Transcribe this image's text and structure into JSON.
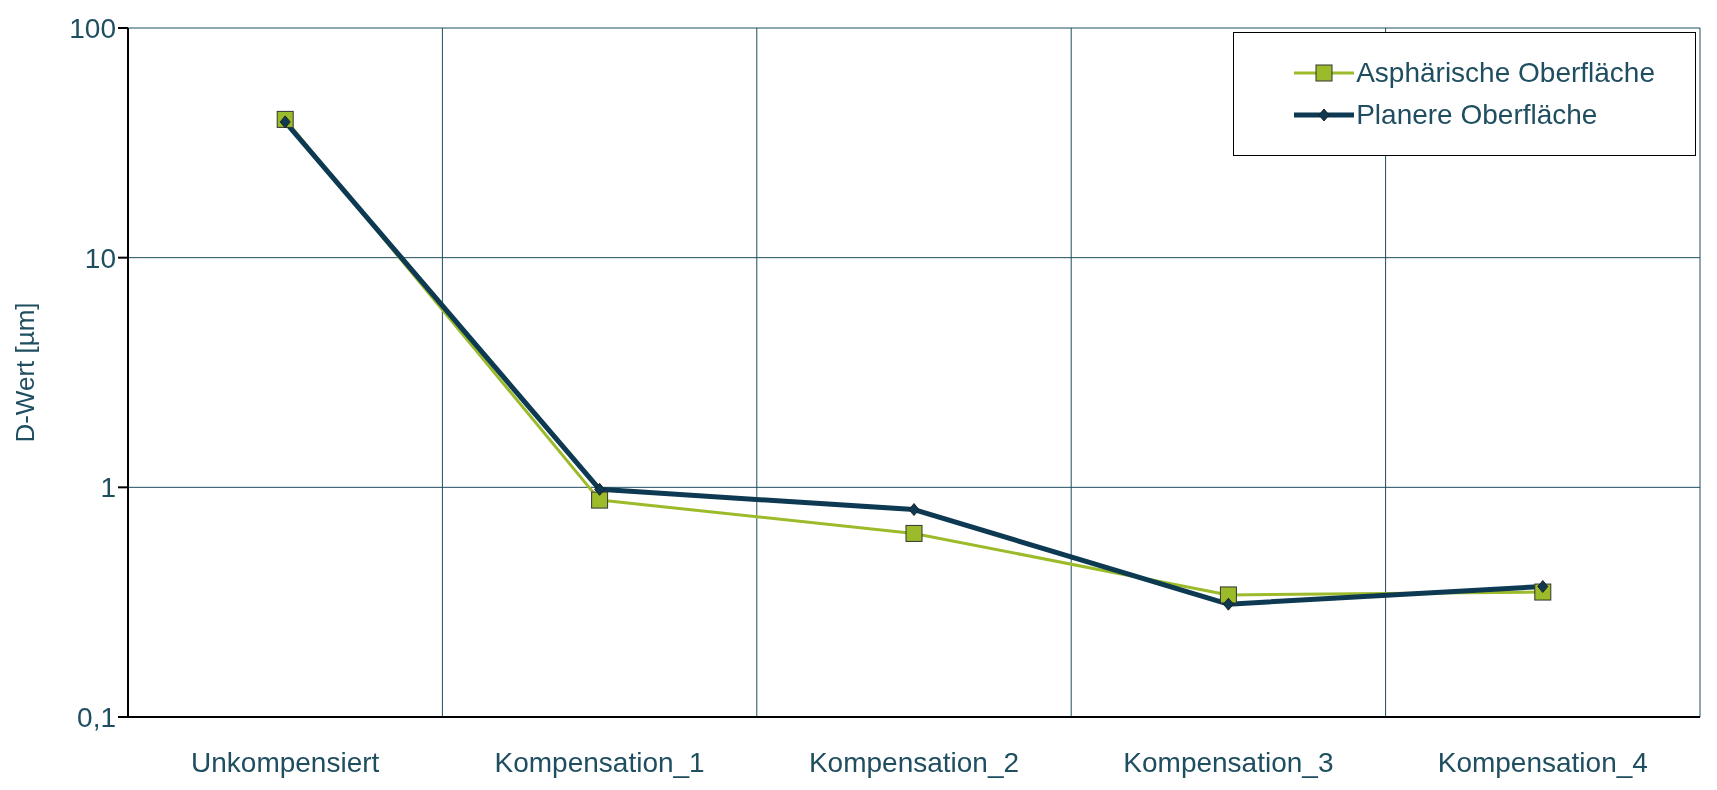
{
  "chart_data": {
    "type": "line",
    "ylabel": "D-Wert  [µm]",
    "categories": [
      "Unkompensiert",
      "Kompensation_1",
      "Kompensation_2",
      "Kompensation_3",
      "Kompensation_4"
    ],
    "series": [
      {
        "name": "Asphärische Oberfläche",
        "color": "#9bbb2a",
        "marker": "square",
        "values": [
          40,
          0.88,
          0.63,
          0.34,
          0.35
        ]
      },
      {
        "name": "Planere Oberfläche",
        "color": "#0d3a52",
        "marker": "diamond",
        "values": [
          39,
          0.98,
          0.8,
          0.31,
          0.37
        ]
      }
    ],
    "log": "y",
    "ylim": [
      0.1,
      100
    ],
    "yticks": [
      {
        "value": 0.1,
        "label": "0,1"
      },
      1,
      10,
      100
    ],
    "grid": true,
    "legend": "top right",
    "line_style": "solid"
  }
}
